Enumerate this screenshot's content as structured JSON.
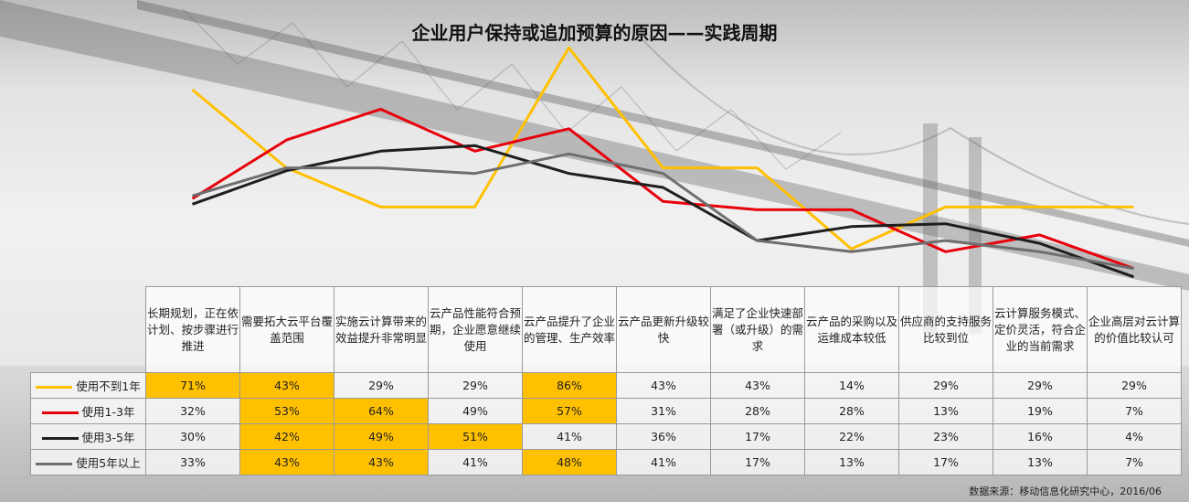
{
  "title": "企业用户保持或追加预算的原因——实践周期",
  "source": "数据来源：移动信息化研究中心，2016/06",
  "colors": {
    "highlight": "#FFC000",
    "grid": "#9a9a9a"
  },
  "chart_data": {
    "type": "line",
    "categories": [
      "长期规划，正在依计划、按步骤进行推进",
      "需要拓大云平台覆盖范围",
      "实施云计算带来的效益提升非常明显",
      "云产品性能符合预期，企业愿意继续使用",
      "云产品提升了企业的管理、生产效率",
      "云产品更新升级较快",
      "满足了企业快速部署（或升级）的需求",
      "云产品的采购以及运维成本较低",
      "供应商的支持服务比较到位",
      "云计算服务模式、定价灵活，符合企业的当前需求",
      "企业高层对云计算的价值比较认可"
    ],
    "series": [
      {
        "name": "使用不到1年",
        "color": "#FFC000",
        "values": [
          71,
          43,
          29,
          29,
          86,
          43,
          43,
          14,
          29,
          29,
          29
        ],
        "labels": [
          "71%",
          "43%",
          "29%",
          "29%",
          "86%",
          "43%",
          "43%",
          "14%",
          "29%",
          "29%",
          "29%"
        ],
        "highlight": [
          true,
          true,
          false,
          false,
          true,
          false,
          false,
          false,
          false,
          false,
          false
        ]
      },
      {
        "name": "使用1-3年",
        "color": "#E8000B",
        "values": [
          32,
          53,
          64,
          49,
          57,
          31,
          28,
          28,
          13,
          19,
          7
        ],
        "labels": [
          "32%",
          "53%",
          "64%",
          "49%",
          "57%",
          "31%",
          "28%",
          "28%",
          "13%",
          "19%",
          "7%"
        ],
        "highlight": [
          false,
          true,
          true,
          false,
          true,
          false,
          false,
          false,
          false,
          false,
          false
        ]
      },
      {
        "name": "使用3-5年",
        "color": "#1E1E1E",
        "values": [
          30,
          42,
          49,
          51,
          41,
          36,
          17,
          22,
          23,
          16,
          4
        ],
        "labels": [
          "30%",
          "42%",
          "49%",
          "51%",
          "41%",
          "36%",
          "17%",
          "22%",
          "23%",
          "16%",
          "4%"
        ],
        "highlight": [
          false,
          true,
          true,
          true,
          false,
          false,
          false,
          false,
          false,
          false,
          false
        ]
      },
      {
        "name": "使用5年以上",
        "color": "#6E6E6E",
        "values": [
          33,
          43,
          43,
          41,
          48,
          41,
          17,
          13,
          17,
          13,
          7
        ],
        "labels": [
          "33%",
          "43%",
          "43%",
          "41%",
          "48%",
          "41%",
          "17%",
          "13%",
          "17%",
          "13%",
          "7%"
        ],
        "highlight": [
          false,
          true,
          true,
          false,
          true,
          false,
          false,
          false,
          false,
          false,
          false
        ]
      }
    ],
    "ylim": [
      0,
      90
    ],
    "grid": false,
    "legend": "table-rows-left"
  }
}
